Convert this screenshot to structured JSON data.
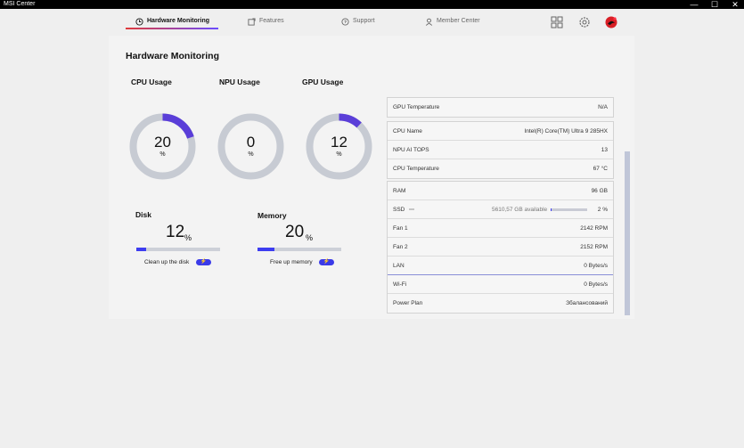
{
  "window": {
    "title": "MSI Center",
    "minimize": "—",
    "maximize": "☐",
    "close": "✕"
  },
  "nav": {
    "tabs": [
      {
        "label": "Hardware Monitoring",
        "active": true
      },
      {
        "label": "Features"
      },
      {
        "label": "Support"
      },
      {
        "label": "Member Center"
      }
    ]
  },
  "page": {
    "title": "Hardware Monitoring"
  },
  "gauges": [
    {
      "label": "CPU Usage",
      "value": "20",
      "unit": "%",
      "percent": 20
    },
    {
      "label": "NPU Usage",
      "value": "0",
      "unit": "%",
      "percent": 0
    },
    {
      "label": "GPU Usage",
      "value": "12",
      "unit": "%",
      "percent": 12
    }
  ],
  "disk": {
    "label": "Disk",
    "value": "12",
    "unit": "%",
    "percent": 12,
    "action": "Clean up the disk"
  },
  "memory": {
    "label": "Memory",
    "value": "20",
    "unit": "%",
    "percent": 20,
    "action": "Free up memory"
  },
  "info": {
    "gpu_temperature": {
      "label": "GPU Temperature",
      "value": "N/A"
    },
    "cpu_name": {
      "label": "CPU Name",
      "value": "Intel(R) Core(TM) Ultra 9 285HX"
    },
    "npu_ai_tops": {
      "label": "NPU AI TOPS",
      "value": "13"
    },
    "cpu_temperature": {
      "label": "CPU Temperature",
      "value": "67 °C"
    },
    "ram": {
      "label": "RAM",
      "value": "96 GB"
    },
    "ssd": {
      "label": "SSD",
      "available": "5610,57 GB available",
      "value": "2 %",
      "percent": 2
    },
    "fan1": {
      "label": "Fan 1",
      "value": "2142 RPM"
    },
    "fan2": {
      "label": "Fan 2",
      "value": "2152 RPM"
    },
    "lan": {
      "label": "LAN",
      "value": "0 Bytes/s"
    },
    "wifi": {
      "label": "Wi-Fi",
      "value": "0 Bytes/s"
    },
    "power_plan": {
      "label": "Power Plan",
      "value": "Збалансований"
    }
  },
  "colors": {
    "accent": "#3d3df0",
    "gauge_track": "#c7cbd3",
    "gauge_fill": "#5a3ed8",
    "tab_red": "#e03a3a",
    "avatar_red": "#d81f26"
  }
}
